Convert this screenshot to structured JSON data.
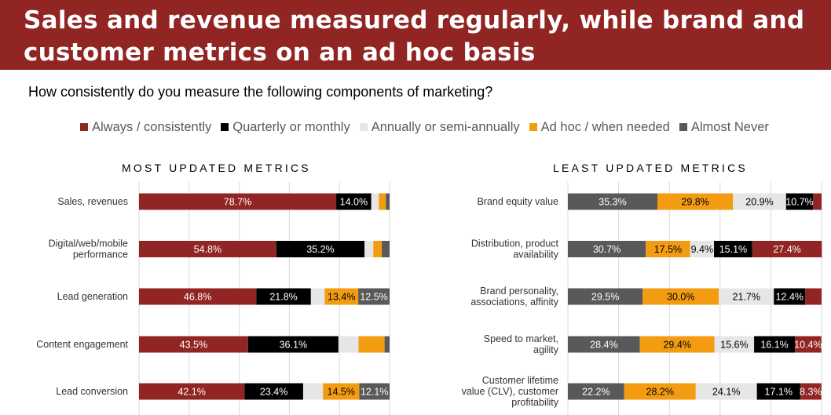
{
  "header": {
    "title_line1": "Sales and revenue measured regularly, while brand and",
    "title_line2": "customer metrics on an ad hoc basis"
  },
  "question": "How consistently do you measure the following components of marketing?",
  "legend": [
    {
      "label": "Always / consistently",
      "color": "#912523"
    },
    {
      "label": "Quarterly or monthly",
      "color": "#000000"
    },
    {
      "label": "Annually or semi-annually",
      "color": "#e6e6e6"
    },
    {
      "label": "Ad hoc / when needed",
      "color": "#f39c12"
    },
    {
      "label": "Almost Never",
      "color": "#595959"
    }
  ],
  "chart_data": [
    {
      "type": "bar",
      "orientation": "horizontal",
      "stacked": true,
      "title": "MOST UPDATED METRICS",
      "xlim": [
        0,
        100
      ],
      "grid": true,
      "categories": [
        "Sales, revenues",
        "Digital/web/mobile performance",
        "Lead generation",
        "Content engagement",
        "Lead conversion"
      ],
      "category_lines": [
        [
          "Sales, revenues"
        ],
        [
          "Digital/web/mobile",
          "performance"
        ],
        [
          "Lead generation"
        ],
        [
          "Content engagement"
        ],
        [
          "Lead conversion"
        ]
      ],
      "series": [
        {
          "name": "Always / consistently",
          "color": "#912523",
          "values": [
            78.7,
            54.8,
            46.8,
            43.5,
            42.1
          ],
          "labels": [
            "78.7%",
            "54.8%",
            "46.8%",
            "43.5%",
            "42.1%"
          ]
        },
        {
          "name": "Quarterly or monthly",
          "color": "#000000",
          "values": [
            14.0,
            35.2,
            21.8,
            36.1,
            23.4
          ],
          "labels": [
            "14.0%",
            "35.2%",
            "21.8%",
            "36.1%",
            "23.4%"
          ]
        },
        {
          "name": "Annually or semi-annually",
          "color": "#e6e6e6",
          "values": [
            3.0,
            3.5,
            5.5,
            8.0,
            7.9
          ],
          "labels": [
            "",
            "",
            "",
            "",
            ""
          ]
        },
        {
          "name": "Ad hoc / when needed",
          "color": "#f39c12",
          "values": [
            2.8,
            3.4,
            13.4,
            10.4,
            14.5
          ],
          "labels": [
            "",
            "",
            "13.4%",
            "",
            "14.5%"
          ]
        },
        {
          "name": "Almost Never",
          "color": "#595959",
          "values": [
            1.5,
            3.1,
            12.5,
            2.0,
            12.1
          ],
          "labels": [
            "",
            "",
            "12.5%",
            "",
            "12.1%"
          ]
        }
      ]
    },
    {
      "type": "bar",
      "orientation": "horizontal",
      "stacked": true,
      "title": "LEAST UPDATED METRICS",
      "xlim": [
        0,
        100
      ],
      "grid": true,
      "categories": [
        "Brand equity value",
        "Distribution, product availability",
        "Brand personality, associations, affinity",
        "Speed to market, agility",
        "Customer lifetime value (CLV), customer profitability"
      ],
      "category_lines": [
        [
          "Brand equity value"
        ],
        [
          "Distribution, product",
          "availability"
        ],
        [
          "Brand personality,",
          "associations, affinity"
        ],
        [
          "Speed to market,",
          "agility"
        ],
        [
          "Customer lifetime",
          "value (CLV), customer",
          "profitability"
        ]
      ],
      "series": [
        {
          "name": "Almost Never",
          "color": "#595959",
          "values": [
            35.3,
            30.7,
            29.5,
            28.4,
            22.2
          ],
          "labels": [
            "35.3%",
            "30.7%",
            "29.5%",
            "28.4%",
            "22.2%"
          ]
        },
        {
          "name": "Ad hoc / when needed",
          "color": "#f39c12",
          "values": [
            29.8,
            17.5,
            30.0,
            29.4,
            28.2
          ],
          "labels": [
            "29.8%",
            "17.5%",
            "30.0%",
            "29.4%",
            "28.2%"
          ]
        },
        {
          "name": "Annually or semi-annually",
          "color": "#e6e6e6",
          "values": [
            20.9,
            9.4,
            21.7,
            15.6,
            24.1
          ],
          "labels": [
            "20.9%",
            "9.4%",
            "21.7%",
            "15.6%",
            "24.1%"
          ]
        },
        {
          "name": "Quarterly or monthly",
          "color": "#000000",
          "values": [
            10.7,
            15.1,
            12.4,
            16.1,
            17.1
          ],
          "labels": [
            "10.7%",
            "15.1%",
            "12.4%",
            "16.1%",
            "17.1%"
          ]
        },
        {
          "name": "Always / consistently",
          "color": "#912523",
          "values": [
            3.3,
            27.4,
            6.4,
            10.4,
            8.3
          ],
          "labels": [
            "",
            "27.4%",
            "",
            "10.4%",
            "8.3%"
          ]
        }
      ]
    }
  ]
}
